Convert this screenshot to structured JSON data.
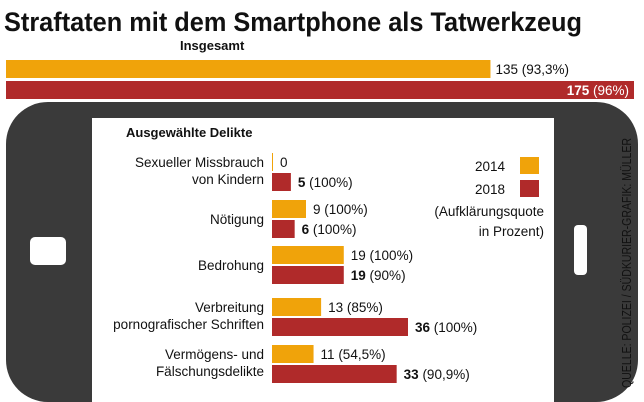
{
  "chart_data": {
    "type": "bar",
    "title": "Straftaten mit dem Smartphone als Tatwerkzeug",
    "source": "QUELLE: POLIZEI / SÜDKURIER-GRAFIK: MÜLLER",
    "colors": {
      "2014": "#F0A30A",
      "2018": "#B02A2A"
    },
    "legend": {
      "items": [
        {
          "name": "2014",
          "color": "#F0A30A"
        },
        {
          "name": "2018",
          "color": "#B02A2A"
        }
      ],
      "note_line1": "(Aufklärungsquote",
      "note_line2": "in Prozent)",
      "placement": "right"
    },
    "total": {
      "label": "Insgesamt",
      "series": [
        {
          "name": "2014",
          "value": 135,
          "label_value": "135",
          "label_rest": " (93,3%)",
          "bold": false
        },
        {
          "name": "2018",
          "value": 175,
          "label_value": "175",
          "label_rest": " (96%)",
          "bold": true
        }
      ]
    },
    "section_title": "Ausgewählte Delikte",
    "categories": [
      {
        "lines": [
          "Sexueller Missbrauch",
          "von Kindern"
        ],
        "series": [
          {
            "name": "2014",
            "value": 0,
            "label_value": "0",
            "label_rest": "",
            "bold": false
          },
          {
            "name": "2018",
            "value": 5,
            "label_value": "5",
            "label_rest": " (100%)",
            "bold": true
          }
        ]
      },
      {
        "lines": [
          "Nötigung"
        ],
        "series": [
          {
            "name": "2014",
            "value": 9,
            "label_value": "9",
            "label_rest": " (100%)",
            "bold": false
          },
          {
            "name": "2018",
            "value": 6,
            "label_value": "6",
            "label_rest": " (100%)",
            "bold": true
          }
        ]
      },
      {
        "lines": [
          "Bedrohung"
        ],
        "series": [
          {
            "name": "2014",
            "value": 19,
            "label_value": "19",
            "label_rest": " (100%)",
            "bold": false
          },
          {
            "name": "2018",
            "value": 19,
            "label_value": "19",
            "label_rest": " (90%)",
            "bold": true
          }
        ]
      },
      {
        "lines": [
          "Verbreitung",
          "pornografischer Schriften"
        ],
        "series": [
          {
            "name": "2014",
            "value": 13,
            "label_value": "13",
            "label_rest": " (85%)",
            "bold": false
          },
          {
            "name": "2018",
            "value": 36,
            "label_value": "36",
            "label_rest": " (100%)",
            "bold": true
          }
        ]
      },
      {
        "lines": [
          "Vermögens- und",
          "Fälschungsdelikte"
        ],
        "series": [
          {
            "name": "2014",
            "value": 11,
            "label_value": "11",
            "label_rest": " (54,5%)",
            "bold": false
          },
          {
            "name": "2018",
            "value": 33,
            "label_value": "33",
            "label_rest": " (90,9%)",
            "bold": true
          }
        ]
      }
    ]
  }
}
